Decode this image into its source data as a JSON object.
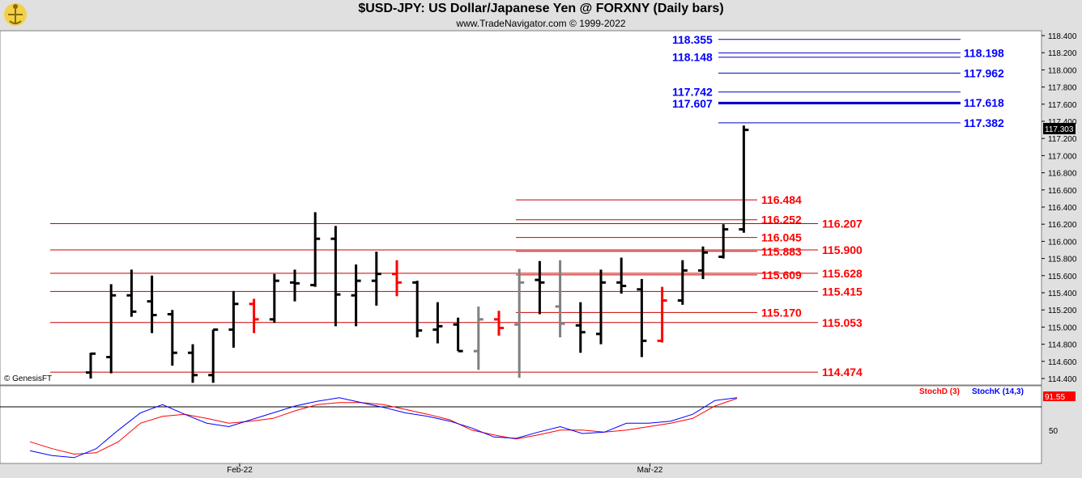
{
  "header": {
    "title": "$USD-JPY:  US Dollar/Japanese Yen @ FORXNY  (Daily bars)",
    "subtitle": "www.TradeNavigator.com © 1999-2022"
  },
  "watermark": "© GenesisFT",
  "chart_data": {
    "type": "ohlc",
    "y_axis_ticks": [
      "118.400",
      "118.200",
      "118.000",
      "117.800",
      "117.600",
      "117.400",
      "117.200",
      "117.000",
      "116.800",
      "116.600",
      "116.400",
      "116.200",
      "116.000",
      "115.800",
      "115.600",
      "115.400",
      "115.200",
      "115.000",
      "114.800",
      "114.600",
      "114.400"
    ],
    "ylim": [
      114.35,
      118.45
    ],
    "last_price": "117.303",
    "x_labels": [
      {
        "label": "Feb-22",
        "bar": 7.3
      },
      {
        "label": "Mar-22",
        "bar": 27.4
      }
    ],
    "bars": [
      {
        "o": 114.47,
        "h": 114.7,
        "l": 114.4,
        "c": 114.69,
        "color": "black"
      },
      {
        "o": 114.65,
        "h": 115.5,
        "l": 114.46,
        "c": 115.37,
        "color": "black"
      },
      {
        "o": 115.37,
        "h": 115.67,
        "l": 115.12,
        "c": 115.18,
        "color": "black"
      },
      {
        "o": 115.3,
        "h": 115.6,
        "l": 114.93,
        "c": 115.14,
        "color": "black"
      },
      {
        "o": 115.15,
        "h": 115.2,
        "l": 114.55,
        "c": 114.7,
        "color": "black"
      },
      {
        "o": 114.7,
        "h": 114.8,
        "l": 114.35,
        "c": 114.44,
        "color": "black"
      },
      {
        "o": 114.44,
        "h": 114.97,
        "l": 114.35,
        "c": 114.97,
        "color": "black"
      },
      {
        "o": 114.97,
        "h": 115.42,
        "l": 114.76,
        "c": 115.27,
        "color": "black"
      },
      {
        "o": 115.27,
        "h": 115.33,
        "l": 114.93,
        "c": 115.09,
        "color": "red"
      },
      {
        "o": 115.09,
        "h": 115.62,
        "l": 115.05,
        "c": 115.54,
        "color": "black"
      },
      {
        "o": 115.52,
        "h": 115.67,
        "l": 115.3,
        "c": 115.51,
        "color": "black"
      },
      {
        "o": 115.49,
        "h": 116.34,
        "l": 115.47,
        "c": 116.03,
        "color": "black"
      },
      {
        "o": 116.03,
        "h": 116.18,
        "l": 115.01,
        "c": 115.38,
        "color": "black"
      },
      {
        "o": 115.37,
        "h": 115.73,
        "l": 115.01,
        "c": 115.54,
        "color": "black"
      },
      {
        "o": 115.54,
        "h": 115.88,
        "l": 115.25,
        "c": 115.62,
        "color": "black"
      },
      {
        "o": 115.62,
        "h": 115.78,
        "l": 115.36,
        "c": 115.52,
        "color": "red"
      },
      {
        "o": 115.52,
        "h": 115.54,
        "l": 114.88,
        "c": 114.96,
        "color": "black"
      },
      {
        "o": 114.97,
        "h": 115.29,
        "l": 114.81,
        "c": 115.01,
        "color": "black"
      },
      {
        "o": 115.03,
        "h": 115.11,
        "l": 114.72,
        "c": 114.72,
        "color": "black"
      },
      {
        "o": 114.72,
        "h": 115.24,
        "l": 114.5,
        "c": 115.09,
        "color": "gray"
      },
      {
        "o": 115.09,
        "h": 115.19,
        "l": 114.9,
        "c": 114.99,
        "color": "red"
      },
      {
        "o": 115.03,
        "h": 115.68,
        "l": 114.41,
        "c": 115.52,
        "color": "gray"
      },
      {
        "o": 115.55,
        "h": 115.77,
        "l": 115.15,
        "c": 115.52,
        "color": "black"
      },
      {
        "o": 115.24,
        "h": 115.78,
        "l": 114.88,
        "c": 115.04,
        "color": "gray"
      },
      {
        "o": 115.02,
        "h": 115.29,
        "l": 114.7,
        "c": 114.94,
        "color": "black"
      },
      {
        "o": 114.92,
        "h": 115.67,
        "l": 114.8,
        "c": 115.52,
        "color": "black"
      },
      {
        "o": 115.52,
        "h": 115.81,
        "l": 115.39,
        "c": 115.48,
        "color": "black"
      },
      {
        "o": 115.44,
        "h": 115.56,
        "l": 114.65,
        "c": 114.84,
        "color": "black"
      },
      {
        "o": 114.84,
        "h": 115.47,
        "l": 114.82,
        "c": 115.31,
        "color": "red"
      },
      {
        "o": 115.31,
        "h": 115.78,
        "l": 115.26,
        "c": 115.66,
        "color": "black"
      },
      {
        "o": 115.66,
        "h": 115.94,
        "l": 115.56,
        "c": 115.87,
        "color": "black"
      },
      {
        "o": 115.82,
        "h": 116.2,
        "l": 115.8,
        "c": 116.14,
        "color": "black"
      },
      {
        "o": 116.14,
        "h": 117.35,
        "l": 116.1,
        "c": 117.3,
        "color": "black"
      }
    ],
    "blue_levels": [
      {
        "value": 118.355,
        "label": "118.355",
        "side": "left"
      },
      {
        "value": 118.198,
        "label": "118.198",
        "side": "right"
      },
      {
        "value": 118.148,
        "label": "118.148",
        "side": "left"
      },
      {
        "value": 117.962,
        "label": "117.962",
        "side": "right"
      },
      {
        "value": 117.742,
        "label": "117.742",
        "side": "left"
      },
      {
        "value": 117.618,
        "label": "117.618",
        "side": "right"
      },
      {
        "value": 117.607,
        "label": "117.607",
        "side": "left"
      },
      {
        "value": 117.382,
        "label": "117.382",
        "side": "right"
      }
    ],
    "red_levels": [
      {
        "value": 116.484,
        "label": "116.484",
        "side": "left"
      },
      {
        "value": 116.252,
        "label": "116.252",
        "side": "left"
      },
      {
        "value": 116.207,
        "label": "116.207",
        "side": "right"
      },
      {
        "value": 116.045,
        "label": "116.045",
        "side": "left"
      },
      {
        "value": 115.9,
        "label": "115.900",
        "side": "right"
      },
      {
        "value": 115.883,
        "label": "115.883",
        "side": "left"
      },
      {
        "value": 115.628,
        "label": "115.628",
        "side": "right"
      },
      {
        "value": 115.609,
        "label": "115.609",
        "side": "left"
      },
      {
        "value": 115.415,
        "label": "115.415",
        "side": "right"
      },
      {
        "value": 115.17,
        "label": "115.170",
        "side": "left"
      },
      {
        "value": 115.053,
        "label": "115.053",
        "side": "right"
      },
      {
        "value": 114.474,
        "label": "114.474",
        "side": "right"
      }
    ],
    "stochastic": {
      "legend_d": "StochD (3)",
      "legend_k": "StochK (14,3)",
      "axis_tick": "50",
      "last_value": "91.55",
      "ylim": [
        0,
        100
      ],
      "stoch_k": [
        15,
        8,
        5,
        18,
        45,
        70,
        82,
        68,
        55,
        50,
        60,
        70,
        80,
        87,
        92,
        85,
        78,
        70,
        65,
        58,
        48,
        35,
        33,
        42,
        50,
        40,
        42,
        55,
        55,
        58,
        68,
        88,
        92
      ],
      "stoch_d": [
        28,
        18,
        10,
        12,
        28,
        55,
        65,
        68,
        62,
        55,
        58,
        62,
        73,
        82,
        85,
        85,
        82,
        75,
        68,
        60,
        45,
        38,
        32,
        38,
        45,
        45,
        42,
        45,
        50,
        55,
        62,
        80,
        91
      ]
    }
  }
}
